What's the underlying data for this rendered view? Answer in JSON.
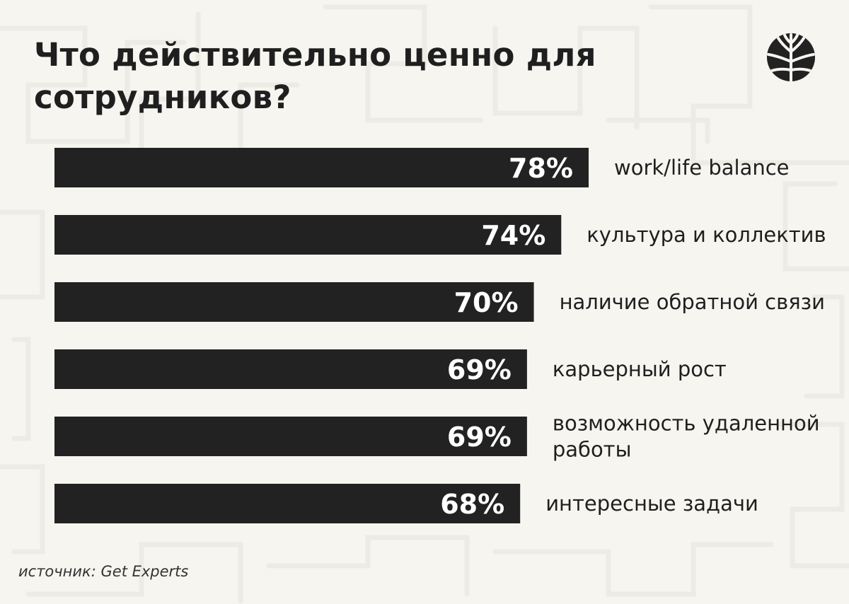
{
  "title": "Что действительно ценно для сотрудников?",
  "source": "источник: Get Experts",
  "logo": "tree-logo-icon",
  "colors": {
    "background": "#f6f5f0",
    "bar": "#222222",
    "bar_text": "#ffffff",
    "label": "#1f1f1f",
    "pattern": "#ecebe4"
  },
  "chart_data": {
    "type": "bar",
    "orientation": "horizontal",
    "unit": "%",
    "xlim": [
      0,
      100
    ],
    "grid": false,
    "categories": [
      "work/life balance",
      "культура и коллектив",
      "наличие обратной связи",
      "карьерный рост",
      "возможность удаленной работы",
      "интересные задачи"
    ],
    "values": [
      78,
      74,
      70,
      69,
      69,
      68
    ],
    "value_labels": [
      "78%",
      "74%",
      "70%",
      "69%",
      "69%",
      "68%"
    ]
  }
}
